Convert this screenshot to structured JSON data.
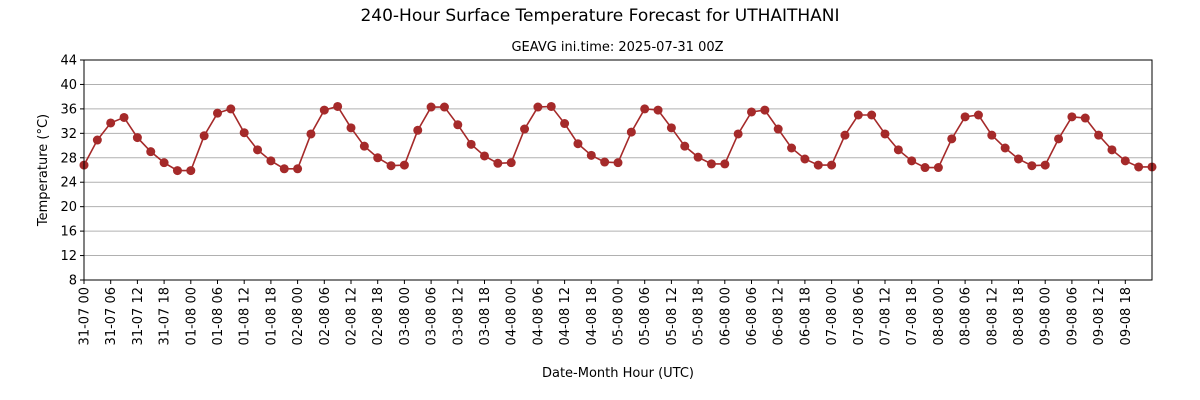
{
  "chart_data": {
    "type": "line",
    "title": "240-Hour Surface Temperature Forecast for UTHAITHANI",
    "subtitle": "GEAVG ini.time: 2025-07-31 00Z",
    "xlabel": "Date-Month Hour (UTC)",
    "ylabel": "Temperature (°C)",
    "ylim": [
      8,
      44
    ],
    "yticks": [
      8,
      12,
      16,
      20,
      24,
      28,
      32,
      36,
      40,
      44
    ],
    "grid": "horizontal",
    "line_color": "#a52a2a",
    "x": [
      "31-07 00",
      "31-07 03",
      "31-07 06",
      "31-07 09",
      "31-07 12",
      "31-07 15",
      "31-07 18",
      "31-07 21",
      "01-08 00",
      "01-08 03",
      "01-08 06",
      "01-08 09",
      "01-08 12",
      "01-08 15",
      "01-08 18",
      "01-08 21",
      "02-08 00",
      "02-08 03",
      "02-08 06",
      "02-08 09",
      "02-08 12",
      "02-08 15",
      "02-08 18",
      "02-08 21",
      "03-08 00",
      "03-08 03",
      "03-08 06",
      "03-08 09",
      "03-08 12",
      "03-08 15",
      "03-08 18",
      "03-08 21",
      "04-08 00",
      "04-08 03",
      "04-08 06",
      "04-08 09",
      "04-08 12",
      "04-08 15",
      "04-08 18",
      "04-08 21",
      "05-08 00",
      "05-08 03",
      "05-08 06",
      "05-08 09",
      "05-08 12",
      "05-08 15",
      "05-08 18",
      "05-08 21",
      "06-08 00",
      "06-08 03",
      "06-08 06",
      "06-08 09",
      "06-08 12",
      "06-08 15",
      "06-08 18",
      "06-08 21",
      "07-08 00",
      "07-08 03",
      "07-08 06",
      "07-08 09",
      "07-08 12",
      "07-08 15",
      "07-08 18",
      "07-08 21",
      "08-08 00",
      "08-08 03",
      "08-08 06",
      "08-08 09",
      "08-08 12",
      "08-08 15",
      "08-08 18",
      "08-08 21",
      "09-08 00",
      "09-08 03",
      "09-08 06",
      "09-08 09",
      "09-08 12",
      "09-08 15",
      "09-08 18",
      "09-08 21",
      "10-08 00"
    ],
    "xticks": [
      "31-07 00",
      "31-07 06",
      "31-07 12",
      "31-07 18",
      "01-08 00",
      "01-08 06",
      "01-08 12",
      "01-08 18",
      "02-08 00",
      "02-08 06",
      "02-08 12",
      "02-08 18",
      "03-08 00",
      "03-08 06",
      "03-08 12",
      "03-08 18",
      "04-08 00",
      "04-08 06",
      "04-08 12",
      "04-08 18",
      "05-08 00",
      "05-08 06",
      "05-08 12",
      "05-08 18",
      "06-08 00",
      "06-08 06",
      "06-08 12",
      "06-08 18",
      "07-08 00",
      "07-08 06",
      "07-08 12",
      "07-08 18",
      "08-08 00",
      "08-08 06",
      "08-08 12",
      "08-08 18",
      "09-08 00",
      "09-08 06",
      "09-08 12",
      "09-08 18"
    ],
    "values": [
      26.8,
      30.9,
      33.7,
      34.6,
      31.3,
      29.0,
      27.2,
      25.9,
      25.9,
      31.6,
      35.3,
      36.0,
      32.1,
      29.3,
      27.5,
      26.2,
      26.2,
      31.9,
      35.8,
      36.4,
      32.9,
      29.9,
      28.0,
      26.7,
      26.8,
      32.5,
      36.3,
      36.3,
      33.4,
      30.2,
      28.3,
      27.1,
      27.2,
      32.7,
      36.3,
      36.4,
      33.6,
      30.3,
      28.4,
      27.3,
      27.2,
      32.2,
      36.0,
      35.8,
      32.9,
      29.9,
      28.1,
      27.0,
      27.0,
      31.9,
      35.5,
      35.8,
      32.7,
      29.6,
      27.8,
      26.8,
      26.8,
      31.7,
      35.0,
      35.0,
      31.9,
      29.3,
      27.5,
      26.4,
      26.4,
      31.1,
      34.7,
      35.0,
      31.7,
      29.6,
      27.8,
      26.7,
      26.8,
      31.1,
      34.7,
      34.5,
      31.7,
      29.3,
      27.5,
      26.5,
      26.5
    ]
  }
}
